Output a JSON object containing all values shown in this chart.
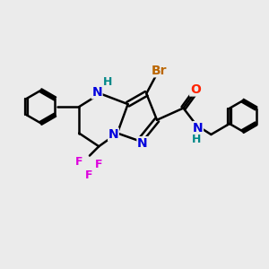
{
  "bg_color": "#ebebeb",
  "bond_color": "#000000",
  "bond_width": 1.8,
  "atom_colors": {
    "N": "#0000dd",
    "O": "#ff2200",
    "Br": "#bb6600",
    "F": "#dd00dd",
    "H_label": "#008888",
    "C": "#000000"
  },
  "font_size_atoms": 10,
  "font_size_small": 9
}
